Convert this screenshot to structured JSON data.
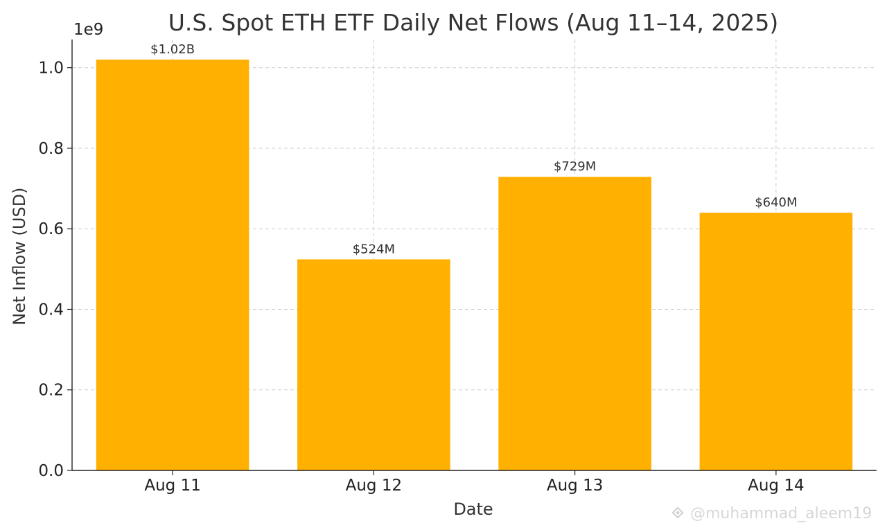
{
  "chart_data": {
    "type": "bar",
    "title": "U.S. Spot ETH ETF Daily Net Flows (Aug 11–14, 2025)",
    "xlabel": "Date",
    "ylabel": "Net Inflow (USD)",
    "y_offset_label": "1e9",
    "categories": [
      "Aug 11",
      "Aug 12",
      "Aug 13",
      "Aug 14"
    ],
    "values": [
      1020000000,
      524000000,
      729000000,
      640000000
    ],
    "data_labels": [
      "$1.02B",
      "$524M",
      "$729M",
      "$640M"
    ],
    "ylim": [
      0,
      1070000000
    ],
    "yticks": [
      0,
      200000000,
      400000000,
      600000000,
      800000000,
      1000000000
    ],
    "ytick_labels": [
      "0.0",
      "0.2",
      "0.4",
      "0.6",
      "0.8",
      "1.0"
    ],
    "grid": true,
    "bar_color": "#FFB000",
    "grid_color": "#cccccc"
  },
  "watermark": {
    "icon": "binance-logo-icon",
    "text": "@muhammad_aleem19"
  }
}
